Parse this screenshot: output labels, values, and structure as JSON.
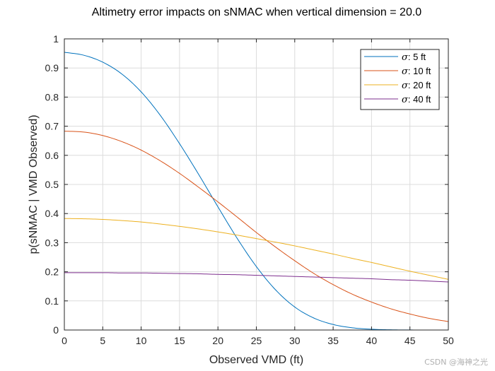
{
  "watermark": "CSDN @海神之光",
  "colors": {
    "background": "#ffffff",
    "grid": "#dcdcdc",
    "axis": "#262626"
  },
  "chart_data": {
    "type": "line",
    "title": "Altimetry error impacts on sNMAC when vertical dimension = 20.0",
    "xlabel": "Observed VMD (ft)",
    "ylabel": "p(sNMAC | VMD Observed)",
    "xlim": [
      0,
      50
    ],
    "ylim": [
      0,
      1
    ],
    "xticks": [
      0,
      5,
      10,
      15,
      20,
      25,
      30,
      35,
      40,
      45,
      50
    ],
    "yticks": [
      0,
      0.1,
      0.2,
      0.3,
      0.4,
      0.5,
      0.6,
      0.7,
      0.8,
      0.9,
      1
    ],
    "grid": true,
    "legend_position": "top-right",
    "x": [
      0,
      2.5,
      5,
      7.5,
      10,
      12.5,
      15,
      17.5,
      20,
      22.5,
      25,
      27.5,
      30,
      32.5,
      35,
      37.5,
      40,
      42.5,
      45,
      47.5,
      50
    ],
    "series": [
      {
        "name": "σ: 5 ft",
        "sigma_symbol": "σ",
        "label_suffix": ": 5 ft",
        "color": "#0072BD",
        "values": [
          0.954,
          0.944,
          0.92,
          0.879,
          0.818,
          0.737,
          0.64,
          0.534,
          0.423,
          0.315,
          0.218,
          0.138,
          0.079,
          0.041,
          0.019,
          0.0076,
          0.0027,
          0.0008,
          0.0002,
          0.0001,
          0.0
        ]
      },
      {
        "name": "σ: 10 ft",
        "sigma_symbol": "σ",
        "label_suffix": ": 10 ft",
        "color": "#D95319",
        "values": [
          0.683,
          0.68,
          0.668,
          0.647,
          0.618,
          0.581,
          0.538,
          0.49,
          0.44,
          0.388,
          0.335,
          0.285,
          0.238,
          0.194,
          0.156,
          0.123,
          0.096,
          0.073,
          0.055,
          0.04,
          0.029
        ]
      },
      {
        "name": "σ: 20 ft",
        "sigma_symbol": "σ",
        "label_suffix": ": 20 ft",
        "color": "#EDB120",
        "values": [
          0.383,
          0.382,
          0.38,
          0.376,
          0.371,
          0.364,
          0.356,
          0.347,
          0.337,
          0.326,
          0.314,
          0.302,
          0.289,
          0.275,
          0.261,
          0.246,
          0.232,
          0.217,
          0.202,
          0.188,
          0.174
        ]
      },
      {
        "name": "σ: 40 ft",
        "sigma_symbol": "σ",
        "label_suffix": ": 40 ft",
        "color": "#7E2F8E",
        "values": [
          0.197,
          0.197,
          0.197,
          0.196,
          0.196,
          0.195,
          0.194,
          0.193,
          0.191,
          0.19,
          0.188,
          0.186,
          0.184,
          0.182,
          0.18,
          0.178,
          0.176,
          0.173,
          0.171,
          0.168,
          0.165
        ]
      }
    ]
  }
}
